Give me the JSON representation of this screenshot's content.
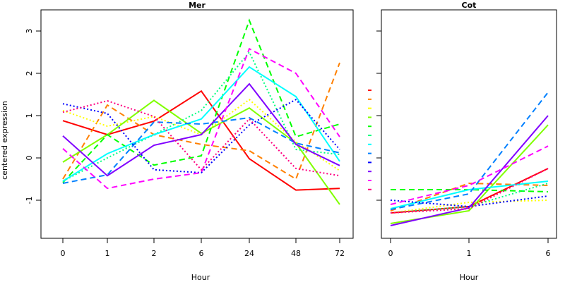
{
  "chart_data": [
    {
      "type": "line",
      "title": "Mer",
      "xlabel": "Hour",
      "ylabel": "centered expression",
      "categories": [
        "0",
        "1",
        "2",
        "6",
        "24",
        "48",
        "72"
      ],
      "ylim": [
        -1.9,
        3.5
      ],
      "yticks": [
        -1,
        0,
        1,
        2,
        3
      ],
      "grid": false,
      "series": [
        {
          "color": "#ff0000",
          "dash": "solid",
          "values": [
            0.88,
            0.55,
            0.87,
            1.58,
            -0.02,
            -0.76,
            -0.72
          ]
        },
        {
          "color": "#ff8000",
          "dash": "dashed",
          "values": [
            -0.5,
            1.25,
            0.55,
            0.32,
            0.17,
            -0.5,
            2.25
          ]
        },
        {
          "color": "#ffff00",
          "dash": "dotted",
          "values": [
            1.12,
            0.75,
            0.98,
            0.55,
            1.38,
            0.38,
            -0.3
          ]
        },
        {
          "color": "#80ff00",
          "dash": "solid",
          "values": [
            -0.1,
            0.55,
            1.36,
            0.58,
            1.18,
            0.35,
            -1.1
          ]
        },
        {
          "color": "#00ff00",
          "dash": "dashed",
          "values": [
            -0.58,
            0.55,
            -0.17,
            0.05,
            3.25,
            0.5,
            0.8
          ]
        },
        {
          "color": "#00ff80",
          "dash": "dotted",
          "values": [
            -0.55,
            0.0,
            0.55,
            1.12,
            2.5,
            0.2,
            0.08
          ]
        },
        {
          "color": "#00ffff",
          "dash": "solid",
          "values": [
            -0.55,
            0.1,
            0.55,
            0.92,
            2.15,
            1.45,
            -0.08
          ]
        },
        {
          "color": "#0080ff",
          "dash": "dashed",
          "values": [
            -0.6,
            -0.4,
            0.85,
            0.8,
            0.95,
            0.35,
            0.12
          ]
        },
        {
          "color": "#0000ff",
          "dash": "dotted",
          "values": [
            1.28,
            1.05,
            -0.28,
            -0.35,
            0.78,
            1.38,
            0.2
          ]
        },
        {
          "color": "#8000ff",
          "dash": "solid",
          "values": [
            0.52,
            -0.42,
            0.3,
            0.55,
            1.75,
            0.32,
            -0.18
          ]
        },
        {
          "color": "#ff00ff",
          "dash": "dashed",
          "values": [
            0.22,
            -0.72,
            -0.5,
            -0.35,
            2.58,
            2.0,
            0.5
          ]
        },
        {
          "color": "#ff0080",
          "dash": "dotted",
          "values": [
            1.08,
            1.35,
            0.98,
            -0.28,
            0.92,
            -0.25,
            -0.42
          ]
        }
      ]
    },
    {
      "type": "line",
      "title": "Cot",
      "xlabel": "Hour",
      "ylabel": "",
      "categories": [
        "0",
        "1",
        "6"
      ],
      "ylim": [
        -1.9,
        3.5
      ],
      "yticks": [
        -1,
        0,
        1,
        2,
        3
      ],
      "show_ytick_labels": false,
      "grid": false,
      "series": [
        {
          "color": "#ff0000",
          "dash": "solid",
          "values": [
            -1.3,
            -1.15,
            -0.25
          ]
        },
        {
          "color": "#ff8000",
          "dash": "dashed",
          "values": [
            -1.25,
            -0.6,
            -0.65
          ]
        },
        {
          "color": "#ffff00",
          "dash": "dotted",
          "values": [
            -1.3,
            -1.05,
            -1.0
          ]
        },
        {
          "color": "#80ff00",
          "dash": "solid",
          "values": [
            -1.55,
            -1.25,
            0.78
          ]
        },
        {
          "color": "#00ff00",
          "dash": "dashed",
          "values": [
            -0.75,
            -0.75,
            -0.8
          ]
        },
        {
          "color": "#00ff80",
          "dash": "dotted",
          "values": [
            -1.3,
            -1.15,
            -0.6
          ]
        },
        {
          "color": "#00ffff",
          "dash": "solid",
          "values": [
            -1.2,
            -0.75,
            -0.55
          ]
        },
        {
          "color": "#0080ff",
          "dash": "dashed",
          "values": [
            -1.22,
            -0.85,
            1.55
          ]
        },
        {
          "color": "#0000ff",
          "dash": "dotted",
          "values": [
            -1.0,
            -1.15,
            -0.9
          ]
        },
        {
          "color": "#8000ff",
          "dash": "solid",
          "values": [
            -1.6,
            -1.18,
            1.0
          ]
        },
        {
          "color": "#ff00ff",
          "dash": "dashed",
          "values": [
            -1.1,
            -0.65,
            0.28
          ]
        },
        {
          "color": "#ff0080",
          "dash": "dotted",
          "values": [
            -1.3,
            -1.2,
            -0.25
          ]
        }
      ]
    }
  ],
  "legend": {
    "placement": "between-panels",
    "entries": [
      {
        "color": "#ff0000",
        "dash": "solid"
      },
      {
        "color": "#ff8000",
        "dash": "dashed"
      },
      {
        "color": "#ffff00",
        "dash": "dotted"
      },
      {
        "color": "#80ff00",
        "dash": "solid"
      },
      {
        "color": "#00ff00",
        "dash": "dashed"
      },
      {
        "color": "#00ff80",
        "dash": "dotted"
      },
      {
        "color": "#00ffff",
        "dash": "solid"
      },
      {
        "color": "#0080ff",
        "dash": "dashed"
      },
      {
        "color": "#0000ff",
        "dash": "dotted"
      },
      {
        "color": "#8000ff",
        "dash": "solid"
      },
      {
        "color": "#ff00ff",
        "dash": "dashed"
      },
      {
        "color": "#ff0080",
        "dash": "dotted"
      }
    ]
  }
}
